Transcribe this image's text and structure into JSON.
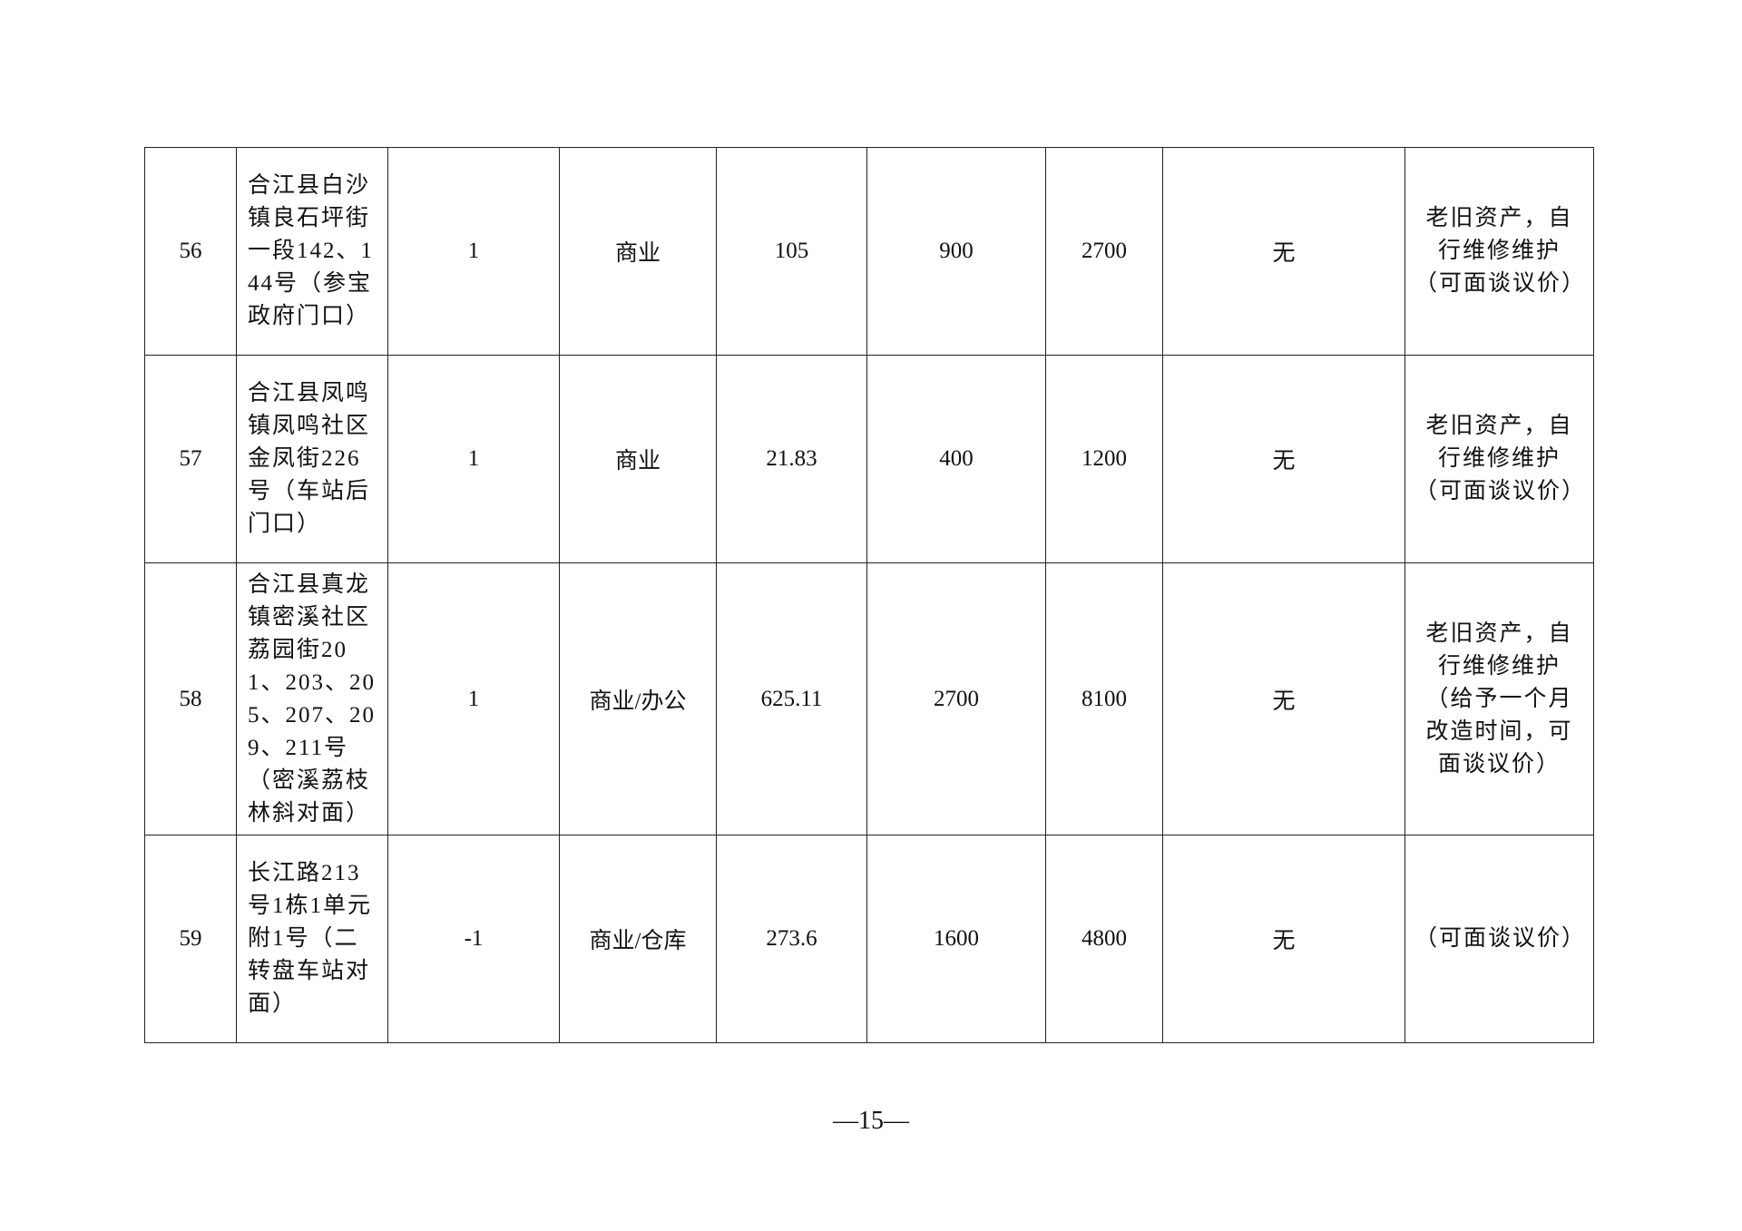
{
  "rows": [
    {
      "no": "56",
      "address": "合江县白沙镇良石坪街一段142、144号（参宝政府门口）",
      "floor": "1",
      "use": "商业",
      "area": "105",
      "rent_a": "900",
      "rent_b": "2700",
      "extra": "无",
      "note": "老旧资产，自行维修维护（可面谈议价）"
    },
    {
      "no": "57",
      "address": "合江县凤鸣镇凤鸣社区金凤街226号（车站后门口）",
      "floor": "1",
      "use": "商业",
      "area": "21.83",
      "rent_a": "400",
      "rent_b": "1200",
      "extra": "无",
      "note": "老旧资产，自行维修维护（可面谈议价）"
    },
    {
      "no": "58",
      "address": "合江县真龙镇密溪社区荔园街201、203、205、207、209、211号（密溪荔枝林斜对面）",
      "floor": "1",
      "use": "商业/办公",
      "area": "625.11",
      "rent_a": "2700",
      "rent_b": "8100",
      "extra": "无",
      "note": "老旧资产，自行维修维护（给予一个月改造时间，可面谈议价）"
    },
    {
      "no": "59",
      "address": "长江路213号1栋1单元附1号（二转盘车站对面）",
      "floor": "-1",
      "use": "商业/仓库",
      "area": "273.6",
      "rent_a": "1600",
      "rent_b": "4800",
      "extra": "无",
      "note": "（可面谈议价）"
    }
  ],
  "page_number": "—15—"
}
